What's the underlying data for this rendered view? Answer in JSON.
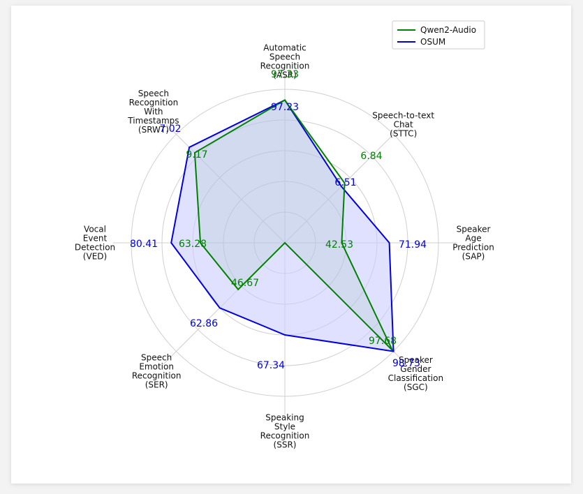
{
  "chart_data": {
    "type": "radar",
    "categories": [
      {
        "lines": [
          "Automatic",
          "Speech",
          "Recognition",
          "(ASR)"
        ]
      },
      {
        "lines": [
          "Speech-to-text",
          "Chat",
          "(STTC)"
        ]
      },
      {
        "lines": [
          "Speaker",
          "Age",
          "Prediction",
          "(SAP)"
        ]
      },
      {
        "lines": [
          "Speaker",
          "Gender",
          "Classification",
          "(SGC)"
        ]
      },
      {
        "lines": [
          "Speaking",
          "Style",
          "Recognition",
          "(SSR)"
        ]
      },
      {
        "lines": [
          "Speech",
          "Emotion",
          "Recognition",
          "(SER)"
        ]
      },
      {
        "lines": [
          "Vocal",
          "Event",
          "Detection",
          "(VED)"
        ]
      },
      {
        "lines": [
          "Speech",
          "Recognition",
          "With",
          "Timestamps",
          "(SRWT)"
        ]
      }
    ],
    "series": [
      {
        "name": "Qwen2-Audio",
        "color": "#008000",
        "labels": [
          "97.33",
          "6.84",
          "42.53",
          "97.68",
          "",
          "46.67",
          "63.28",
          "9.17"
        ],
        "radius_fraction": [
          0.93,
          0.55,
          0.37,
          0.99,
          0.0,
          0.43,
          0.55,
          0.83
        ]
      },
      {
        "name": "OSUM",
        "color": "#0000dd",
        "fill": "#ccccff",
        "labels": [
          "97.23",
          "6.51",
          "71.94",
          "98.73",
          "67.34",
          "62.86",
          "80.41",
          "7.02"
        ],
        "radius_fraction": [
          0.93,
          0.52,
          0.68,
          1.0,
          0.6,
          0.6,
          0.74,
          0.88
        ]
      }
    ],
    "grid": true,
    "legend_position": "top-right"
  }
}
